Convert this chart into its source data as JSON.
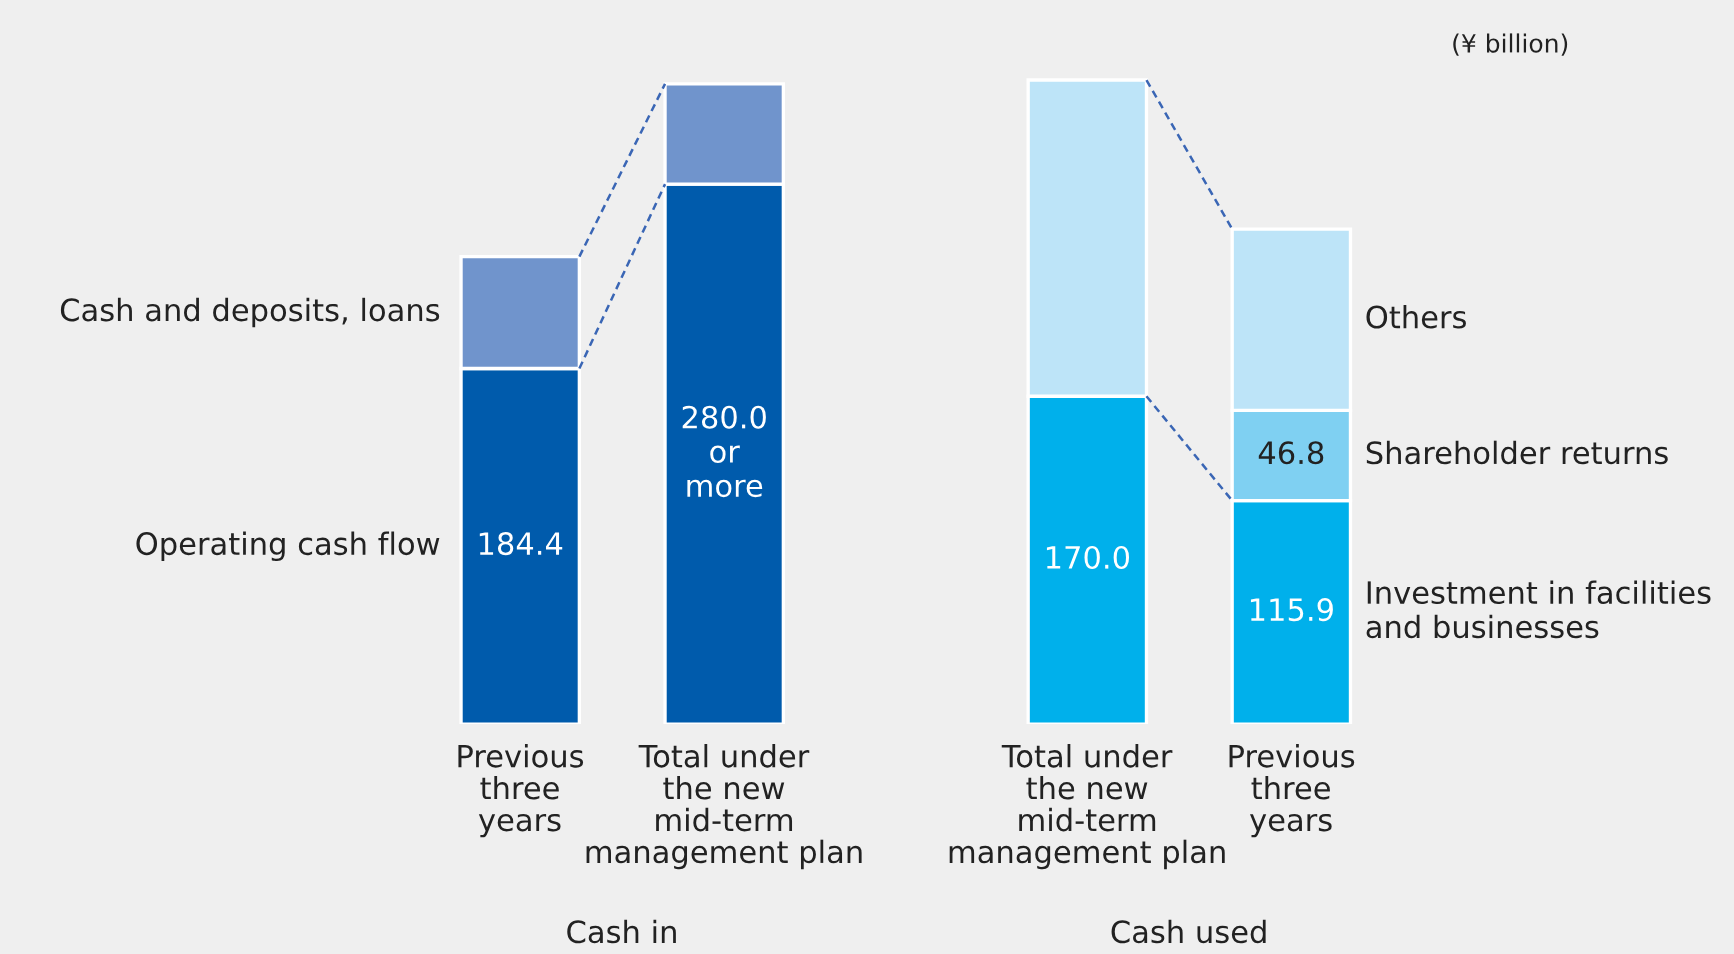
{
  "chart_data": {
    "type": "bar",
    "stacked": true,
    "categories": [
      "Previous\nthree\nyears",
      "Total under\nthe new\nmid-term\nmanagement plan",
      "Total under\nthe new\nmid-term\nmanagement plan",
      "Previous\nthree\nyears"
    ],
    "series": [
      {
        "name": "Operating cash flow",
        "color": "#005bac",
        "values": [
          184.4,
          280.0,
          null,
          null
        ],
        "value_labels": [
          "184.4",
          "280.0\nor\nmore",
          null,
          null
        ]
      },
      {
        "name": "Cash and deposits, loans",
        "color": "#7094cc",
        "values": [
          58,
          52,
          null,
          null
        ],
        "value_labels": [
          null,
          null,
          null,
          null
        ]
      },
      {
        "name": "Investment in facilities\nand businesses",
        "color": "#00b0eb",
        "values": [
          null,
          null,
          170.0,
          115.9
        ],
        "value_labels": [
          null,
          null,
          "170.0",
          "115.9"
        ]
      },
      {
        "name": "Shareholder returns",
        "color": "#7fd0f2",
        "values": [
          null,
          null,
          null,
          46.8
        ],
        "value_labels": [
          null,
          null,
          null,
          "46.8"
        ]
      },
      {
        "name": "Others",
        "color": "#bde4f8",
        "values": [
          null,
          null,
          164,
          94
        ],
        "value_labels": [
          null,
          null,
          null,
          null
        ]
      }
    ],
    "annotations": [
      "(¥ billion)",
      "Cash in",
      "Cash used"
    ]
  }
}
